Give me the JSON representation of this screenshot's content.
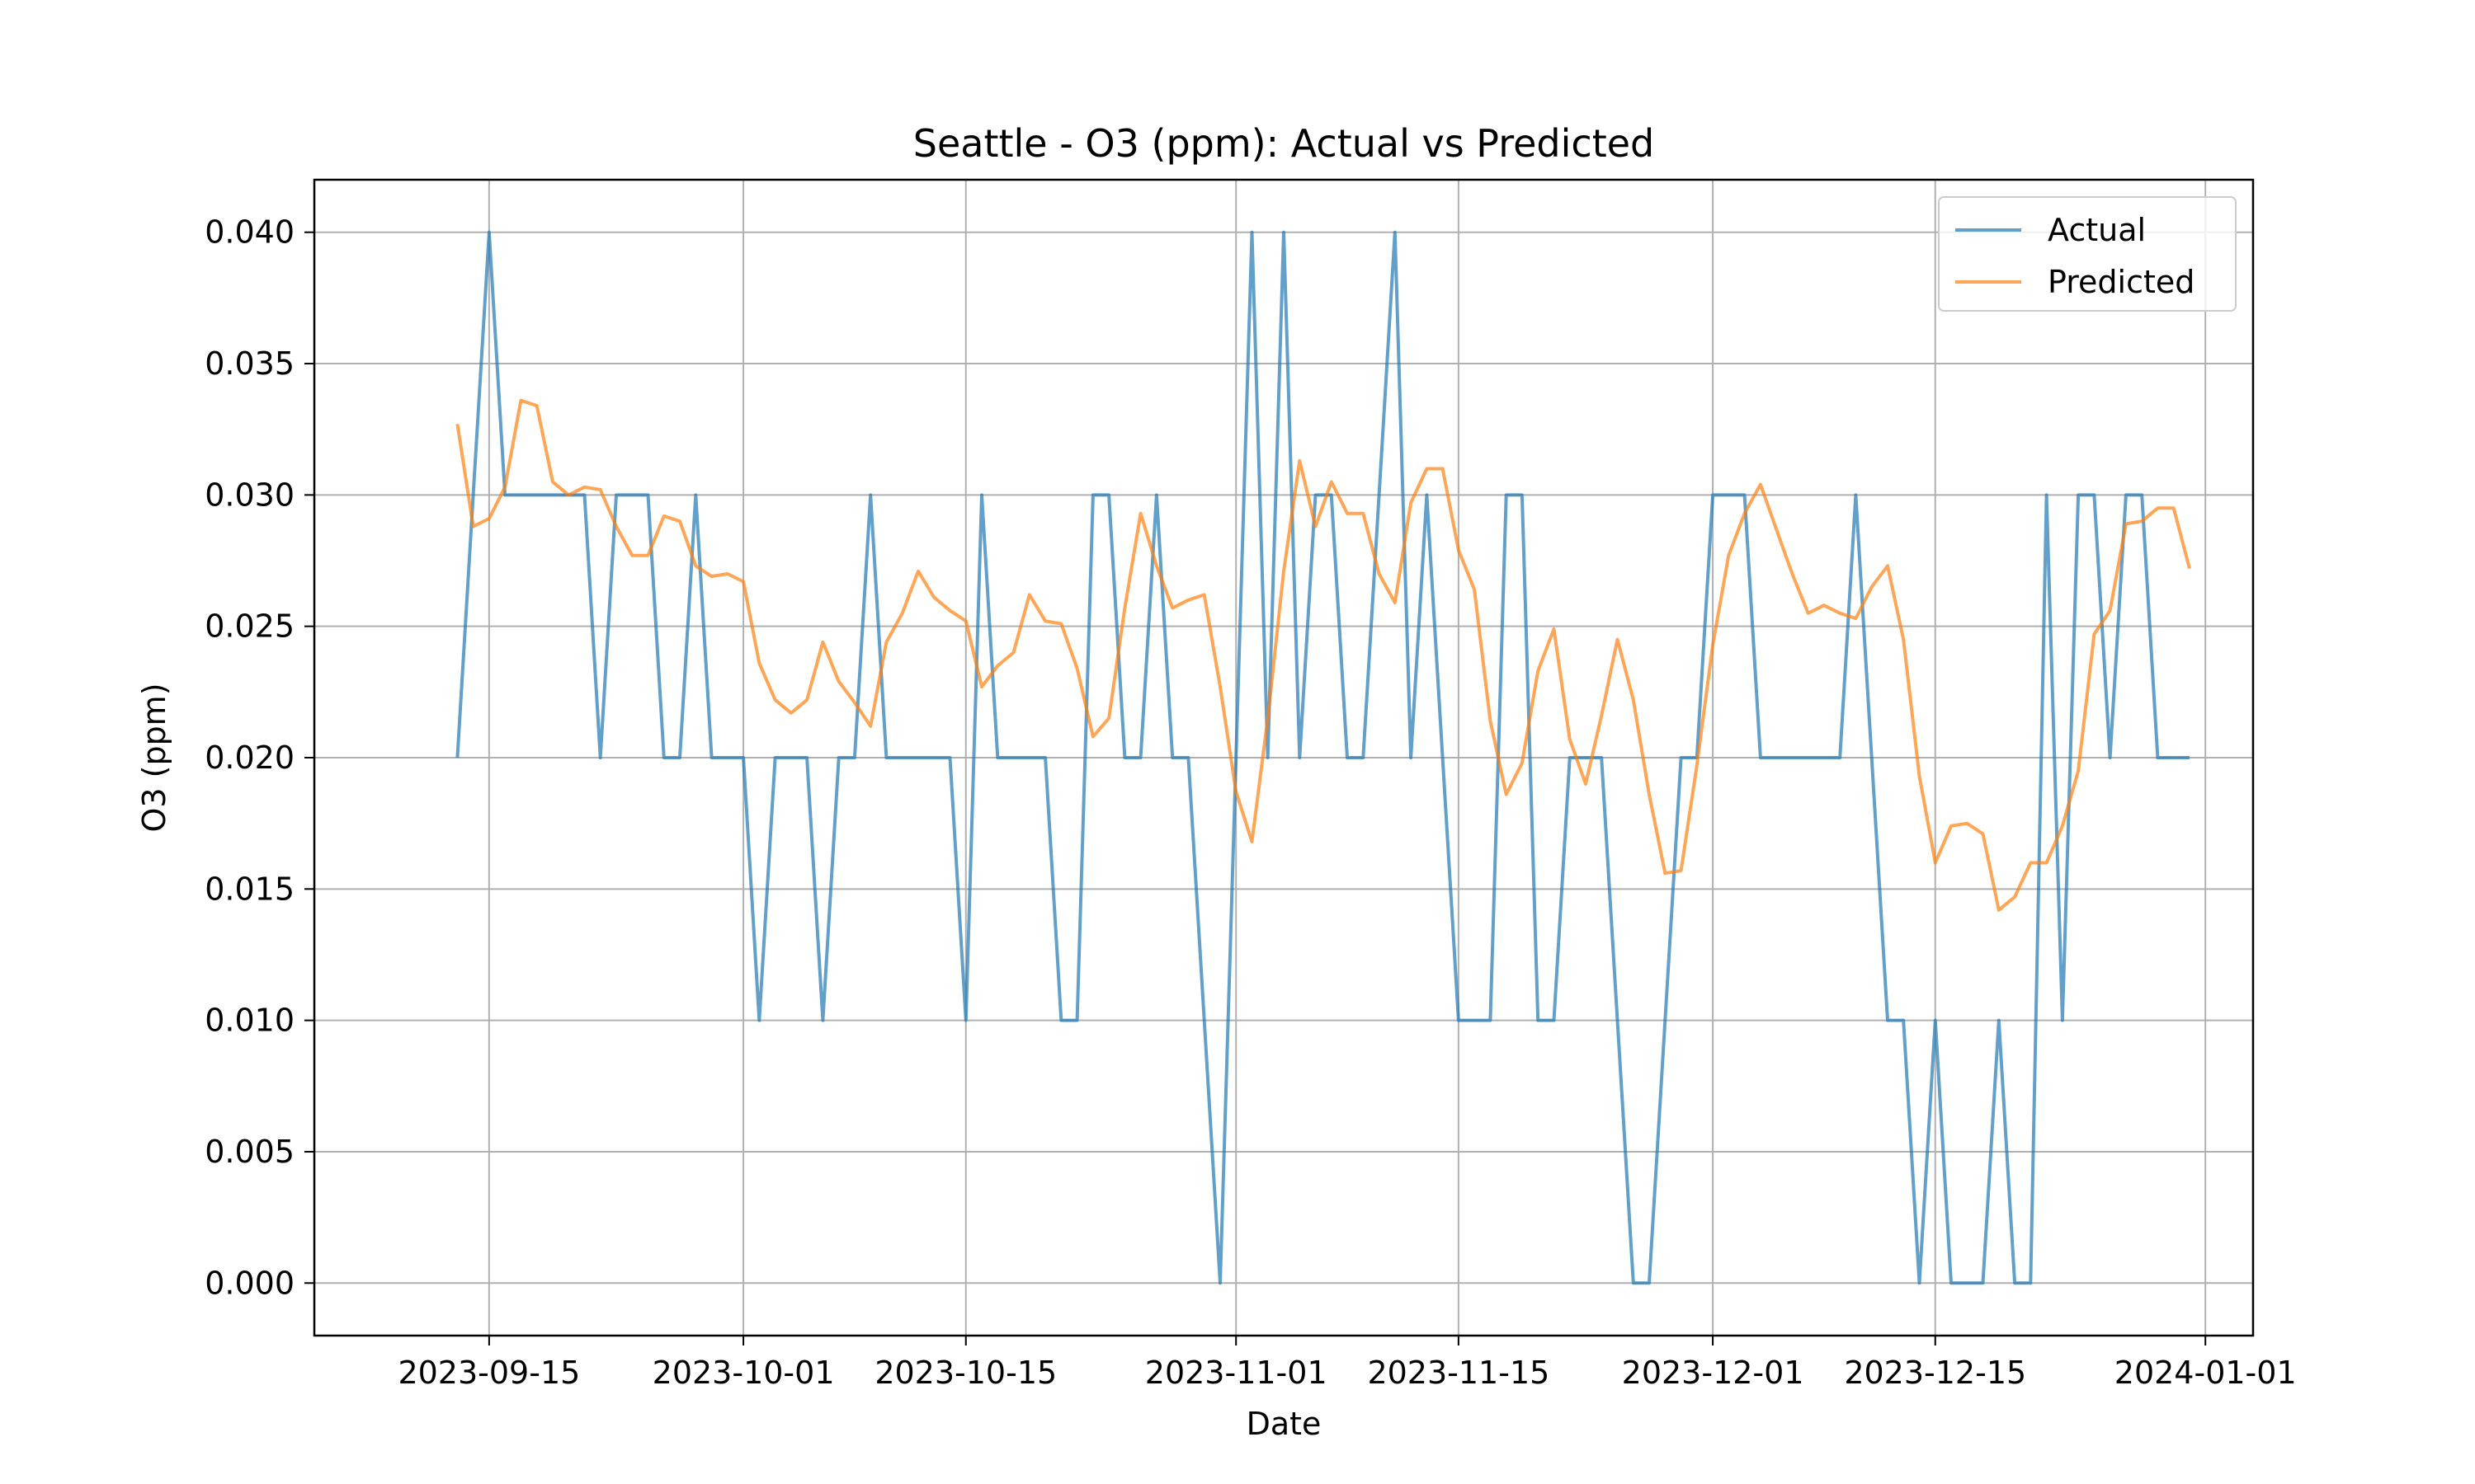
{
  "chart_data": {
    "type": "line",
    "title": "Seattle - O3 (ppm): Actual vs Predicted",
    "xlabel": "Date",
    "ylabel": "O3 (ppm)",
    "xlim": [
      "2023-09-04",
      "2024-01-04"
    ],
    "ylim": [
      -0.002,
      0.042
    ],
    "grid": true,
    "legend_position": "top-right",
    "x_ticks": [
      "2023-09-15",
      "2023-10-01",
      "2023-10-15",
      "2023-11-01",
      "2023-11-15",
      "2023-12-01",
      "2023-12-15",
      "2024-01-01"
    ],
    "y_ticks": [
      "0.000",
      "0.005",
      "0.010",
      "0.015",
      "0.020",
      "0.025",
      "0.030",
      "0.035",
      "0.040"
    ],
    "x": [
      "2023-09-13",
      "2023-09-14",
      "2023-09-15",
      "2023-09-16",
      "2023-09-17",
      "2023-09-18",
      "2023-09-19",
      "2023-09-20",
      "2023-09-21",
      "2023-09-22",
      "2023-09-23",
      "2023-09-24",
      "2023-09-25",
      "2023-09-26",
      "2023-09-27",
      "2023-09-28",
      "2023-09-29",
      "2023-09-30",
      "2023-10-01",
      "2023-10-02",
      "2023-10-03",
      "2023-10-04",
      "2023-10-05",
      "2023-10-06",
      "2023-10-07",
      "2023-10-08",
      "2023-10-09",
      "2023-10-10",
      "2023-10-11",
      "2023-10-12",
      "2023-10-13",
      "2023-10-14",
      "2023-10-15",
      "2023-10-16",
      "2023-10-17",
      "2023-10-18",
      "2023-10-19",
      "2023-10-20",
      "2023-10-21",
      "2023-10-22",
      "2023-10-23",
      "2023-10-24",
      "2023-10-25",
      "2023-10-26",
      "2023-10-27",
      "2023-10-28",
      "2023-10-29",
      "2023-10-30",
      "2023-10-31",
      "2023-11-01",
      "2023-11-02",
      "2023-11-03",
      "2023-11-04",
      "2023-11-05",
      "2023-11-06",
      "2023-11-07",
      "2023-11-08",
      "2023-11-09",
      "2023-11-10",
      "2023-11-11",
      "2023-11-12",
      "2023-11-13",
      "2023-11-14",
      "2023-11-15",
      "2023-11-16",
      "2023-11-17",
      "2023-11-18",
      "2023-11-19",
      "2023-11-20",
      "2023-11-21",
      "2023-11-22",
      "2023-11-23",
      "2023-11-24",
      "2023-11-25",
      "2023-11-26",
      "2023-11-27",
      "2023-11-28",
      "2023-11-29",
      "2023-11-30",
      "2023-12-01",
      "2023-12-02",
      "2023-12-03",
      "2023-12-04",
      "2023-12-05",
      "2023-12-06",
      "2023-12-07",
      "2023-12-08",
      "2023-12-09",
      "2023-12-10",
      "2023-12-11",
      "2023-12-12",
      "2023-12-13",
      "2023-12-14",
      "2023-12-15",
      "2023-12-16",
      "2023-12-17",
      "2023-12-18",
      "2023-12-19",
      "2023-12-20",
      "2023-12-21",
      "2023-12-22",
      "2023-12-23",
      "2023-12-24",
      "2023-12-25",
      "2023-12-26",
      "2023-12-27",
      "2023-12-28",
      "2023-12-29",
      "2023-12-30",
      "2023-12-31"
    ],
    "series": [
      {
        "name": "Actual",
        "color": "#1f77b4",
        "values": [
          0.02,
          0.03,
          0.04,
          0.03,
          0.03,
          0.03,
          0.03,
          0.03,
          0.03,
          0.02,
          0.03,
          0.03,
          0.03,
          0.02,
          0.02,
          0.03,
          0.02,
          0.02,
          0.02,
          0.01,
          0.02,
          0.02,
          0.02,
          0.01,
          0.02,
          0.02,
          0.03,
          0.02,
          0.02,
          0.02,
          0.02,
          0.02,
          0.01,
          0.03,
          0.02,
          0.02,
          0.02,
          0.02,
          0.01,
          0.01,
          0.03,
          0.03,
          0.02,
          0.02,
          0.03,
          0.02,
          0.02,
          0.01,
          0.0,
          0.02,
          0.04,
          0.02,
          0.04,
          0.02,
          0.03,
          0.03,
          0.02,
          0.02,
          0.03,
          0.04,
          0.02,
          0.03,
          0.02,
          0.01,
          0.01,
          0.01,
          0.03,
          0.03,
          0.01,
          0.01,
          0.02,
          0.02,
          0.02,
          0.01,
          0.0,
          0.0,
          0.01,
          0.02,
          0.02,
          0.03,
          0.03,
          0.03,
          0.02,
          0.02,
          0.02,
          0.02,
          0.02,
          0.02,
          0.03,
          0.02,
          0.01,
          0.01,
          0.0,
          0.01,
          0.0,
          0.0,
          0.0,
          0.01,
          0.0,
          0.0,
          0.03,
          0.01,
          0.03,
          0.03,
          0.02,
          0.03,
          0.03,
          0.02,
          0.02,
          0.02
        ]
      },
      {
        "name": "Predicted",
        "color": "#ff7f0e",
        "values": [
          0.0327,
          0.0288,
          0.0291,
          0.0303,
          0.0336,
          0.0334,
          0.0305,
          0.03,
          0.0303,
          0.0302,
          0.0288,
          0.0277,
          0.0277,
          0.0292,
          0.029,
          0.0273,
          0.0269,
          0.027,
          0.0267,
          0.0236,
          0.0222,
          0.0217,
          0.0222,
          0.0244,
          0.0229,
          0.0221,
          0.0212,
          0.0244,
          0.0255,
          0.0271,
          0.0261,
          0.0256,
          0.0252,
          0.0227,
          0.0235,
          0.024,
          0.0262,
          0.0252,
          0.0251,
          0.0234,
          0.0208,
          0.0215,
          0.0257,
          0.0293,
          0.0273,
          0.0257,
          0.026,
          0.0262,
          0.0227,
          0.0187,
          0.0168,
          0.0215,
          0.0271,
          0.0313,
          0.0288,
          0.0305,
          0.0293,
          0.0293,
          0.027,
          0.0259,
          0.0297,
          0.031,
          0.031,
          0.0279,
          0.0264,
          0.0214,
          0.0186,
          0.0198,
          0.0233,
          0.0249,
          0.0207,
          0.019,
          0.0216,
          0.0245,
          0.0222,
          0.0186,
          0.0156,
          0.0157,
          0.0197,
          0.0243,
          0.0277,
          0.0293,
          0.0304,
          0.0287,
          0.027,
          0.0255,
          0.0258,
          0.0255,
          0.0253,
          0.0265,
          0.0273,
          0.0245,
          0.0193,
          0.016,
          0.0174,
          0.0175,
          0.0171,
          0.0142,
          0.0147,
          0.016,
          0.016,
          0.0174,
          0.0195,
          0.0247,
          0.0256,
          0.0289,
          0.029,
          0.0295,
          0.0295,
          0.0272
        ]
      }
    ]
  }
}
